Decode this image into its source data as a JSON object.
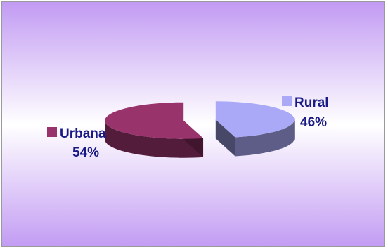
{
  "chart_data": {
    "type": "pie",
    "variant": "3d-exploded",
    "title": "",
    "slices": [
      {
        "label": "Urbana",
        "value": 54,
        "value_label": "54%",
        "color": "#99336b"
      },
      {
        "label": "Rural",
        "value": 46,
        "value_label": "46%",
        "color": "#a9a9f7"
      }
    ],
    "legend": "inline-labels"
  },
  "colors": {
    "background_top": "#c29bf3",
    "background_mid": "#ffffff",
    "background_bottom": "#c29bf3",
    "label_text": "#1a1a86"
  }
}
